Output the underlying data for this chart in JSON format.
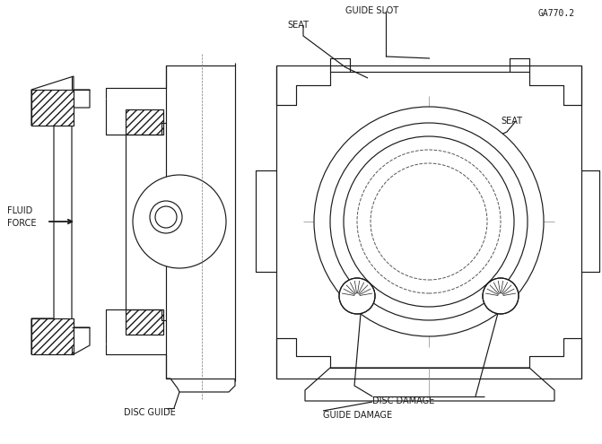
{
  "background_color": "#ffffff",
  "line_color": "#1a1a1a",
  "figure_id": "GA770.2",
  "labels": {
    "guide_slot": "GUIDE SLOT",
    "seat_top": "SEAT",
    "seat_right": "SEAT",
    "fluid_force": "FLUID\nFORCE",
    "disc_guide": "DISC GUIDE",
    "disc_damage": "DISC DAMAGE",
    "guide_damage": "GUIDE DAMAGE"
  },
  "font_size": 7.0
}
